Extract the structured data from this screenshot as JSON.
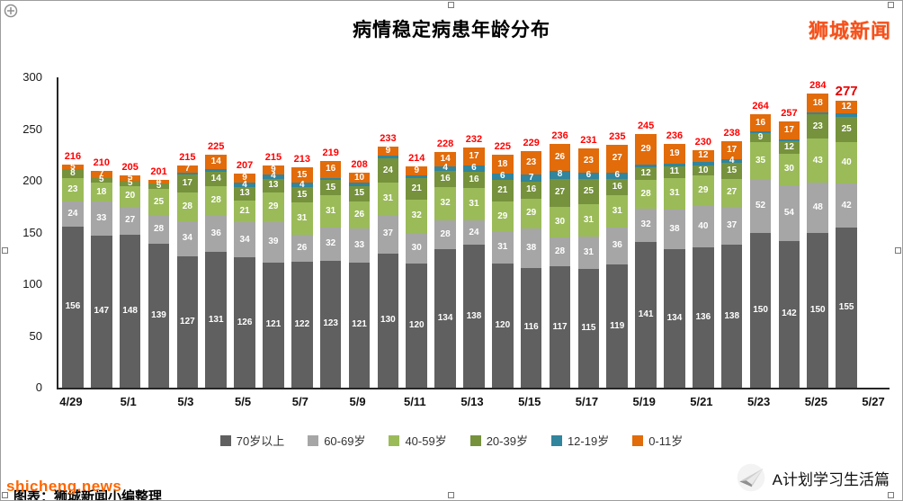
{
  "title": "病情稳定病患年龄分布",
  "brand_top_right": "狮城新闻",
  "watermarks": {
    "shicheng": "shicheng.news",
    "chart_credit": "图表：狮城新闻小编整理"
  },
  "footer": {
    "brand": "A计划学习生活篇"
  },
  "chart_data": {
    "type": "bar",
    "stacked": true,
    "title": "病情稳定病患年龄分布",
    "grid": false,
    "legend_position": "bottom",
    "ylim": [
      0,
      300
    ],
    "yticks": [
      0,
      50,
      100,
      150,
      200,
      250,
      300
    ],
    "categories": [
      "4/29",
      "4/30",
      "5/1",
      "5/2",
      "5/3",
      "5/4",
      "5/5",
      "5/6",
      "5/7",
      "5/8",
      "5/9",
      "5/10",
      "5/11",
      "5/12",
      "5/13",
      "5/14",
      "5/15",
      "5/16",
      "5/17",
      "5/18",
      "5/19",
      "5/20",
      "5/21",
      "5/22",
      "5/23",
      "5/24",
      "5/25",
      "5/26"
    ],
    "x_tick_labels": [
      "4/29",
      "5/1",
      "5/3",
      "5/5",
      "5/7",
      "5/9",
      "5/11",
      "5/13",
      "5/15",
      "5/17",
      "5/19",
      "5/21",
      "5/23",
      "5/25",
      "5/27"
    ],
    "series": [
      {
        "name": "70岁以上",
        "color": "#606060",
        "values": [
          156,
          147,
          148,
          139,
          127,
          131,
          126,
          121,
          122,
          123,
          121,
          130,
          120,
          134,
          138,
          120,
          116,
          117,
          115,
          119,
          141,
          134,
          136,
          138,
          150,
          142,
          150,
          155
        ]
      },
      {
        "name": "60-69岁",
        "color": "#a6a6a6",
        "values": [
          24,
          33,
          27,
          28,
          34,
          36,
          34,
          39,
          26,
          32,
          33,
          37,
          30,
          28,
          24,
          31,
          38,
          28,
          31,
          36,
          32,
          38,
          40,
          37,
          52,
          54,
          48,
          42
        ]
      },
      {
        "name": "40-59岁",
        "color": "#9bbb59",
        "values": [
          23,
          18,
          20,
          25,
          28,
          28,
          21,
          29,
          31,
          31,
          26,
          31,
          32,
          32,
          31,
          29,
          29,
          30,
          31,
          31,
          28,
          31,
          29,
          27,
          35,
          30,
          43,
          40
        ]
      },
      {
        "name": "20-39岁",
        "color": "#76923c",
        "values": [
          8,
          5,
          5,
          5,
          17,
          14,
          13,
          13,
          15,
          15,
          15,
          24,
          21,
          16,
          16,
          21,
          16,
          27,
          25,
          16,
          12,
          11,
          10,
          15,
          9,
          12,
          23,
          25
        ]
      },
      {
        "name": "12-19岁",
        "color": "#31859c",
        "values": [
          0,
          0,
          0,
          0,
          2,
          2,
          4,
          4,
          4,
          2,
          3,
          2,
          2,
          4,
          6,
          6,
          7,
          8,
          6,
          6,
          3,
          3,
          3,
          4,
          2,
          2,
          2,
          3
        ]
      },
      {
        "name": "0-11岁",
        "color": "#e26b0a",
        "values": [
          5,
          7,
          5,
          4,
          7,
          14,
          9,
          9,
          15,
          16,
          10,
          9,
          9,
          14,
          17,
          18,
          23,
          26,
          23,
          27,
          29,
          19,
          12,
          17,
          16,
          17,
          18,
          12
        ]
      }
    ],
    "totals": [
      216,
      210,
      205,
      201,
      215,
      225,
      207,
      215,
      213,
      219,
      208,
      233,
      214,
      228,
      232,
      225,
      229,
      236,
      231,
      235,
      245,
      236,
      230,
      238,
      264,
      257,
      284,
      277
    ],
    "total_label_color": "#ff0000",
    "bar_label_color": "#ffffff"
  }
}
